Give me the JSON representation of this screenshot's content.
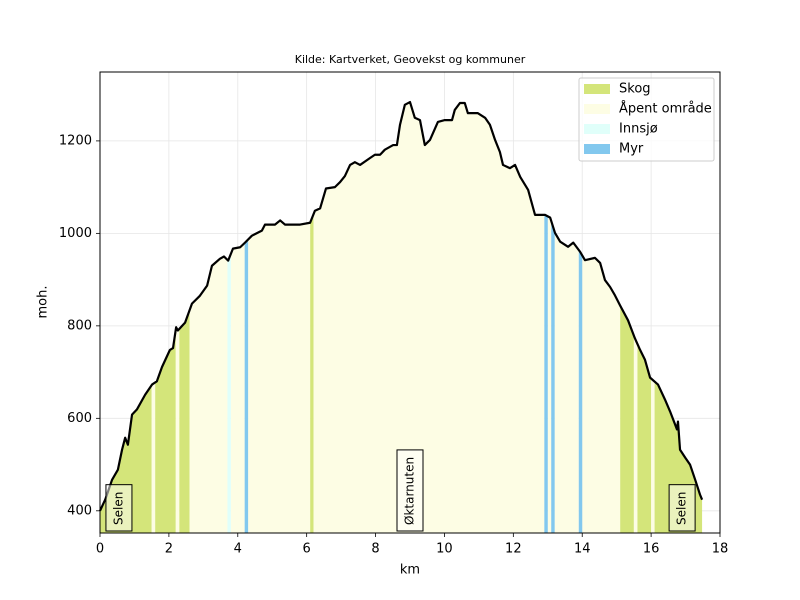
{
  "chart_data": {
    "type": "area",
    "title": "Kilde: Kartverket, Geovekst og kommuner",
    "x_label": "km",
    "y_label": "moh.",
    "x": [
      0,
      0.15,
      0.35,
      0.52,
      0.64,
      0.73,
      0.81,
      0.93,
      1.07,
      1.31,
      1.51,
      1.65,
      1.8,
      2.03,
      2.12,
      2.21,
      2.26,
      2.47,
      2.67,
      2.9,
      3.11,
      3.25,
      3.48,
      3.6,
      3.72,
      3.86,
      4.07,
      4.21,
      4.41,
      4.7,
      4.79,
      5.08,
      5.23,
      5.37,
      5.81,
      6.1,
      6.24,
      6.39,
      6.56,
      6.82,
      6.97,
      7.11,
      7.26,
      7.4,
      7.55,
      7.84,
      7.98,
      8.13,
      8.27,
      8.51,
      8.62,
      8.71,
      8.85,
      9.0,
      9.14,
      9.29,
      9.43,
      9.58,
      9.81,
      10.01,
      10.22,
      10.3,
      10.45,
      10.59,
      10.68,
      10.97,
      11.18,
      11.32,
      11.47,
      11.61,
      11.7,
      11.9,
      12.05,
      12.2,
      12.43,
      12.63,
      12.92,
      13.07,
      13.21,
      13.36,
      13.59,
      13.74,
      13.94,
      14.08,
      14.37,
      14.52,
      14.66,
      14.81,
      14.95,
      15.1,
      15.33,
      15.53,
      15.68,
      15.82,
      15.97,
      16.2,
      16.4,
      16.55,
      16.7,
      16.75,
      16.78,
      16.84,
      16.99,
      17.13,
      17.28,
      17.42,
      17.48
    ],
    "values": [
      400,
      424,
      467,
      489,
      532,
      558,
      543,
      608,
      619,
      651,
      673,
      680,
      711,
      748,
      752,
      797,
      790,
      807,
      848,
      865,
      887,
      930,
      945,
      950,
      941,
      967,
      970,
      980,
      995,
      1006,
      1019,
      1019,
      1028,
      1019,
      1019,
      1023,
      1049,
      1054,
      1097,
      1100,
      1111,
      1124,
      1148,
      1154,
      1148,
      1163,
      1170,
      1170,
      1181,
      1191,
      1191,
      1235,
      1278,
      1284,
      1250,
      1245,
      1191,
      1202,
      1241,
      1245,
      1245,
      1267,
      1282,
      1282,
      1260,
      1260,
      1250,
      1235,
      1202,
      1176,
      1148,
      1141,
      1148,
      1122,
      1094,
      1040,
      1040,
      1034,
      1001,
      982,
      971,
      980,
      960,
      942,
      947,
      936,
      899,
      884,
      866,
      844,
      812,
      773,
      748,
      727,
      688,
      673,
      641,
      615,
      586,
      576,
      593,
      532,
      515,
      500,
      467,
      435,
      424
    ],
    "line_color": "#000000",
    "series": [
      {
        "name": "Skog",
        "color": "#d4e57a",
        "ranges": [
          [
            0,
            1.5
          ],
          [
            1.6,
            2.2
          ],
          [
            2.3,
            2.6
          ],
          [
            6.1,
            6.2
          ],
          [
            15.1,
            15.5
          ],
          [
            15.6,
            16.0
          ],
          [
            16.1,
            17.5
          ]
        ]
      },
      {
        "name": "Åpent område",
        "color": "#fdfde4",
        "ranges": [
          [
            1.5,
            1.6
          ],
          [
            2.2,
            2.3
          ],
          [
            2.6,
            3.7
          ],
          [
            3.8,
            4.2
          ],
          [
            4.3,
            6.1
          ],
          [
            6.2,
            12.9
          ],
          [
            13.0,
            13.1
          ],
          [
            13.2,
            13.9
          ],
          [
            14.0,
            15.1
          ],
          [
            15.5,
            15.6
          ],
          [
            16.0,
            16.1
          ]
        ]
      },
      {
        "name": "Innsjø",
        "color": "#e0fffa",
        "ranges": [
          [
            3.7,
            3.8
          ]
        ]
      },
      {
        "name": "Myr",
        "color": "#82c8ee",
        "ranges": [
          [
            4.2,
            4.3
          ],
          [
            12.9,
            13.0
          ],
          [
            13.1,
            13.2
          ],
          [
            13.9,
            14.0
          ]
        ]
      }
    ],
    "annotations": [
      {
        "text": "Selen",
        "x": 0.55
      },
      {
        "text": "Øktarnuten",
        "x": 9.0
      },
      {
        "text": "Selen",
        "x": 16.9
      }
    ],
    "xlim": [
      0,
      18
    ],
    "ylim": [
      352,
      1349
    ],
    "xticks": [
      0,
      2,
      4,
      6,
      8,
      10,
      12,
      14,
      16,
      18
    ],
    "yticks": [
      400,
      600,
      800,
      1000,
      1200
    ],
    "grid": true,
    "legend": "upper right"
  }
}
